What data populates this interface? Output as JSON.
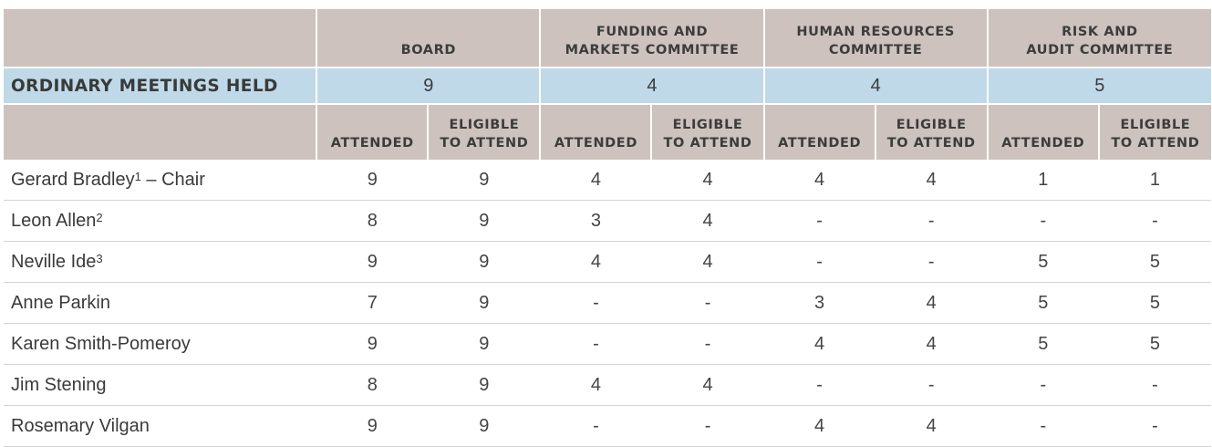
{
  "header": {
    "groups": [
      {
        "title_line1": "",
        "title_line2": "BOARD"
      },
      {
        "title_line1": "FUNDING AND",
        "title_line2": "MARKETS COMMITTEE"
      },
      {
        "title_line1": "HUMAN RESOURCES",
        "title_line2": "COMMITTEE"
      },
      {
        "title_line1": "RISK AND",
        "title_line2": "AUDIT COMMITTEE"
      }
    ]
  },
  "meetings": {
    "label": "ORDINARY MEETINGS HELD",
    "values": [
      "9",
      "4",
      "4",
      "5"
    ]
  },
  "subheader": {
    "attended": "ATTENDED",
    "eligible_line1": "ELIGIBLE",
    "eligible_line2": "TO ATTEND"
  },
  "rows": [
    {
      "name": "Gerard Bradley",
      "sup": "1",
      "suffix": " – Chair",
      "values": [
        "9",
        "9",
        "4",
        "4",
        "4",
        "4",
        "1",
        "1"
      ]
    },
    {
      "name": "Leon Allen",
      "sup": "2",
      "suffix": "",
      "values": [
        "8",
        "9",
        "3",
        "4",
        "-",
        "-",
        "-",
        "-"
      ]
    },
    {
      "name": "Neville Ide",
      "sup": "3",
      "suffix": "",
      "values": [
        "9",
        "9",
        "4",
        "4",
        "-",
        "-",
        "5",
        "5"
      ]
    },
    {
      "name": "Anne Parkin",
      "sup": "",
      "suffix": "",
      "values": [
        "7",
        "9",
        "-",
        "-",
        "3",
        "4",
        "5",
        "5"
      ]
    },
    {
      "name": "Karen Smith-Pomeroy",
      "sup": "",
      "suffix": "",
      "values": [
        "9",
        "9",
        "-",
        "-",
        "4",
        "4",
        "5",
        "5"
      ]
    },
    {
      "name": "Jim Stening",
      "sup": "",
      "suffix": "",
      "values": [
        "8",
        "9",
        "4",
        "4",
        "-",
        "-",
        "-",
        "-"
      ]
    },
    {
      "name": "Rosemary Vilgan",
      "sup": "",
      "suffix": "",
      "values": [
        "9",
        "9",
        "-",
        "-",
        "4",
        "4",
        "-",
        "-"
      ]
    }
  ]
}
